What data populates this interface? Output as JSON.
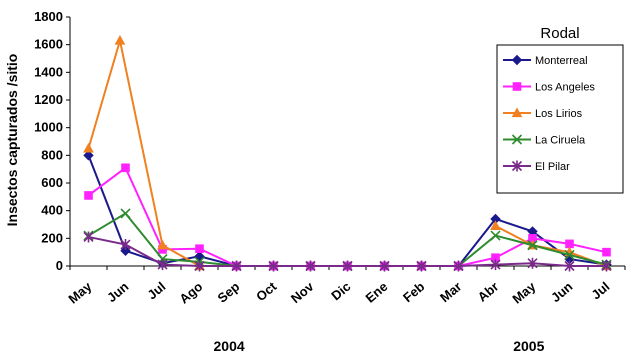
{
  "chart_data": {
    "type": "line",
    "ylabel": "Insectos capturados /sitio",
    "ylim": [
      0,
      1800
    ],
    "yticks": [
      0,
      200,
      400,
      600,
      800,
      1000,
      1200,
      1400,
      1600,
      1800
    ],
    "categories": [
      "May",
      "Jun",
      "Jul",
      "Ago",
      "Sep",
      "Oct",
      "Nov",
      "Dic",
      "Ene",
      "Feb",
      "Mar",
      "Abr",
      "May",
      "Jun",
      "Jul"
    ],
    "year_labels": [
      {
        "label": "2004",
        "category_index": 3.8
      },
      {
        "label": "2005",
        "category_index": 11.9
      }
    ],
    "legend": {
      "title": "Rodal",
      "placement": "right"
    },
    "series": [
      {
        "name": "Monterreal",
        "color": "#1a1a8c",
        "marker": "diamond",
        "x": [
          0,
          1,
          2,
          3,
          4,
          5,
          6,
          7,
          8,
          9,
          10,
          11,
          12,
          13,
          14
        ],
        "values": [
          800,
          110,
          20,
          70,
          0,
          0,
          0,
          0,
          0,
          0,
          0,
          340,
          250,
          50,
          10
        ]
      },
      {
        "name": "Los Angeles",
        "color": "#ff22ff",
        "marker": "square",
        "x": [
          0,
          1,
          2,
          3,
          4,
          5,
          6,
          7,
          8,
          9,
          10,
          11,
          12,
          13,
          14
        ],
        "values": [
          510,
          710,
          120,
          125,
          0,
          0,
          0,
          0,
          0,
          0,
          0,
          60,
          200,
          160,
          100
        ]
      },
      {
        "name": "Los Lirios",
        "color": "#f08020",
        "marker": "triangle",
        "x": [
          0,
          0.85,
          2,
          3
        ],
        "values": [
          850,
          1630,
          150,
          0
        ]
      },
      {
        "name": "Los Lirios",
        "color": "#f08020",
        "marker": "triangle",
        "x": [
          11,
          12,
          13,
          14
        ],
        "values": [
          290,
          150,
          100,
          0
        ]
      },
      {
        "name": "La Ciruela",
        "color": "#2e8b2e",
        "marker": "x",
        "x": [
          0,
          1,
          2,
          3,
          4,
          5,
          6,
          7,
          8,
          9,
          10,
          11,
          12,
          13,
          14
        ],
        "values": [
          220,
          380,
          50,
          30,
          0,
          0,
          0,
          0,
          0,
          0,
          0,
          220,
          150,
          80,
          10
        ]
      },
      {
        "name": "El Pilar",
        "color": "#7a2a8a",
        "marker": "star",
        "x": [
          0,
          1,
          2,
          3,
          4,
          5,
          6,
          7,
          8,
          9,
          10,
          11,
          12,
          13,
          14
        ],
        "values": [
          210,
          155,
          10,
          0,
          0,
          0,
          0,
          0,
          0,
          0,
          0,
          10,
          20,
          0,
          0
        ]
      }
    ],
    "legend_entries": [
      {
        "name": "Monterreal",
        "color": "#1a1a8c",
        "marker": "diamond"
      },
      {
        "name": "Los Angeles",
        "color": "#ff22ff",
        "marker": "square"
      },
      {
        "name": "Los Lirios",
        "color": "#f08020",
        "marker": "triangle"
      },
      {
        "name": "La Ciruela",
        "color": "#2e8b2e",
        "marker": "x"
      },
      {
        "name": "El Pilar",
        "color": "#7a2a8a",
        "marker": "star"
      }
    ]
  }
}
